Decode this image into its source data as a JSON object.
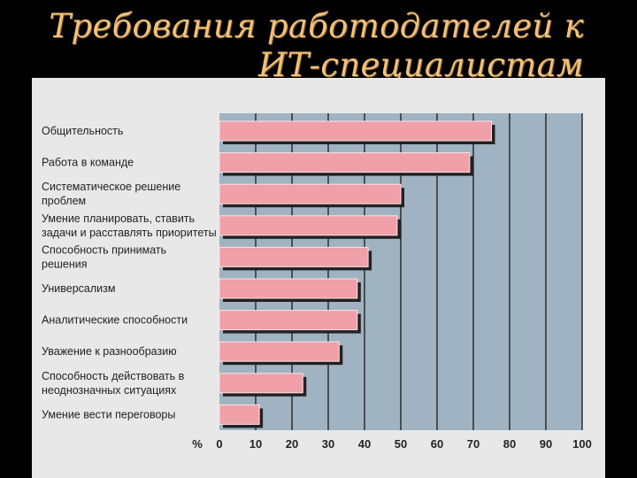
{
  "slide": {
    "title_line1": "Требования работодателей к",
    "title_line2": "ИТ-специалистам"
  },
  "colors": {
    "background": "#000000",
    "title": "#f2c079",
    "panel": "#e8e8e8",
    "plot_area": "#9fb3c2",
    "bar": "#f0a0a8",
    "bar_shadow": "#222222"
  },
  "chart_data": {
    "type": "bar",
    "orientation": "horizontal",
    "title": "",
    "xlabel": "%",
    "ylabel": "",
    "xlim": [
      0,
      100
    ],
    "xticks": [
      0,
      10,
      20,
      30,
      40,
      50,
      60,
      70,
      80,
      90,
      100
    ],
    "grid": "vertical",
    "categories": [
      [
        "Общительность"
      ],
      [
        "Работа в команде"
      ],
      [
        "Систематическое решение",
        "проблем"
      ],
      [
        "Умение планировать, ставить",
        "задачи и расставлять приоритеты"
      ],
      [
        "Способность принимать",
        "решения"
      ],
      [
        "Универсализм"
      ],
      [
        "Аналитические способности"
      ],
      [
        "Уважение к разнообразию"
      ],
      [
        "Способность действовать в",
        "неоднозначных ситуациях"
      ],
      [
        "Умение вести переговоры"
      ]
    ],
    "values": [
      75,
      69,
      50,
      49,
      41,
      38,
      38,
      33,
      23,
      11
    ]
  }
}
